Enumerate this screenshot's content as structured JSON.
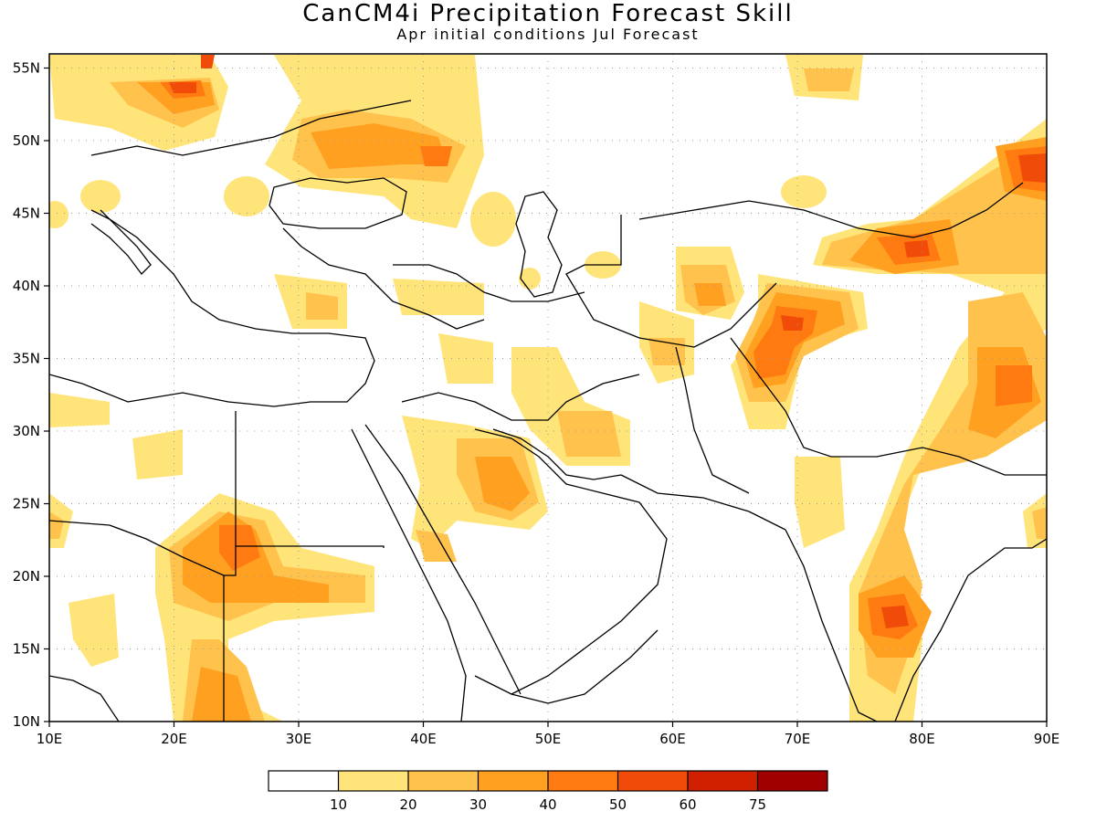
{
  "title": "CanCM4i Precipitation Forecast Skill",
  "subtitle": "Apr initial conditions   Jul Forecast",
  "map": {
    "lon_range": [
      10,
      90
    ],
    "lat_range": [
      10,
      56
    ],
    "lon_ticks": [
      "10E",
      "20E",
      "30E",
      "40E",
      "50E",
      "60E",
      "70E",
      "80E",
      "90E"
    ],
    "lat_ticks": [
      "10N",
      "15N",
      "20N",
      "25N",
      "30N",
      "35N",
      "40N",
      "45N",
      "50N",
      "55N"
    ],
    "grid": "dotted"
  },
  "legend": {
    "labels": [
      "10",
      "20",
      "30",
      "40",
      "50",
      "60",
      "75"
    ],
    "colors": [
      "#ffffff",
      "#ffe47a",
      "#ffc34d",
      "#ffa020",
      "#ff7a10",
      "#f04b08",
      "#d02000",
      "#a00000"
    ]
  },
  "chart_data": {
    "type": "heatmap",
    "title": "CanCM4i Precipitation Forecast Skill",
    "subtitle": "Apr initial conditions   Jul Forecast",
    "xlim": [
      10,
      90
    ],
    "ylim": [
      10,
      56
    ],
    "skill_centers": [
      {
        "lon": 22,
        "lat": 53.5,
        "value": 50
      },
      {
        "lon": 40,
        "lat": 50,
        "value": 30
      },
      {
        "lon": 41,
        "lat": 48.5,
        "value": 50
      },
      {
        "lon": 87,
        "lat": 47.5,
        "value": 60
      },
      {
        "lon": 80,
        "lat": 42,
        "value": 50
      },
      {
        "lon": 70,
        "lat": 38.5,
        "value": 50
      },
      {
        "lon": 68,
        "lat": 34,
        "value": 50
      },
      {
        "lon": 62,
        "lat": 39,
        "value": 40
      },
      {
        "lon": 45,
        "lat": 27,
        "value": 30
      },
      {
        "lon": 24,
        "lat": 22,
        "value": 40
      },
      {
        "lon": 24,
        "lat": 12,
        "value": 30
      },
      {
        "lon": 78,
        "lat": 17.5,
        "value": 50
      },
      {
        "lon": 86,
        "lat": 32,
        "value": 40
      },
      {
        "lon": 34,
        "lat": 38.5,
        "value": 20
      },
      {
        "lon": 40,
        "lat": 39,
        "value": 20
      },
      {
        "lon": 53,
        "lat": 30,
        "value": 20
      }
    ]
  }
}
